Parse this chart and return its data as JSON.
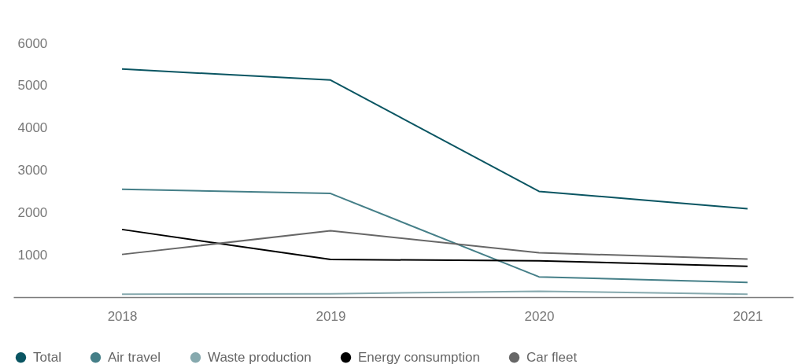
{
  "chart_data": {
    "type": "line",
    "categories": [
      "2018",
      "2019",
      "2020",
      "2021"
    ],
    "series": [
      {
        "name": "Total",
        "color": "#0a5562",
        "values": [
          5390,
          5130,
          2500,
          2090
        ]
      },
      {
        "name": "Air travel",
        "color": "#457f88",
        "values": [
          2550,
          2450,
          480,
          350
        ]
      },
      {
        "name": "Waste production",
        "color": "#86a9ae",
        "values": [
          70,
          80,
          140,
          70
        ]
      },
      {
        "name": "Energy consumption",
        "color": "#000000",
        "values": [
          1600,
          890,
          860,
          730
        ]
      },
      {
        "name": "Car fleet",
        "color": "#676767",
        "values": [
          1010,
          1570,
          1050,
          900
        ]
      }
    ],
    "ylim": [
      0,
      6000
    ],
    "yticks": [
      1000,
      2000,
      3000,
      4000,
      5000,
      6000
    ],
    "legend": "bottom"
  }
}
